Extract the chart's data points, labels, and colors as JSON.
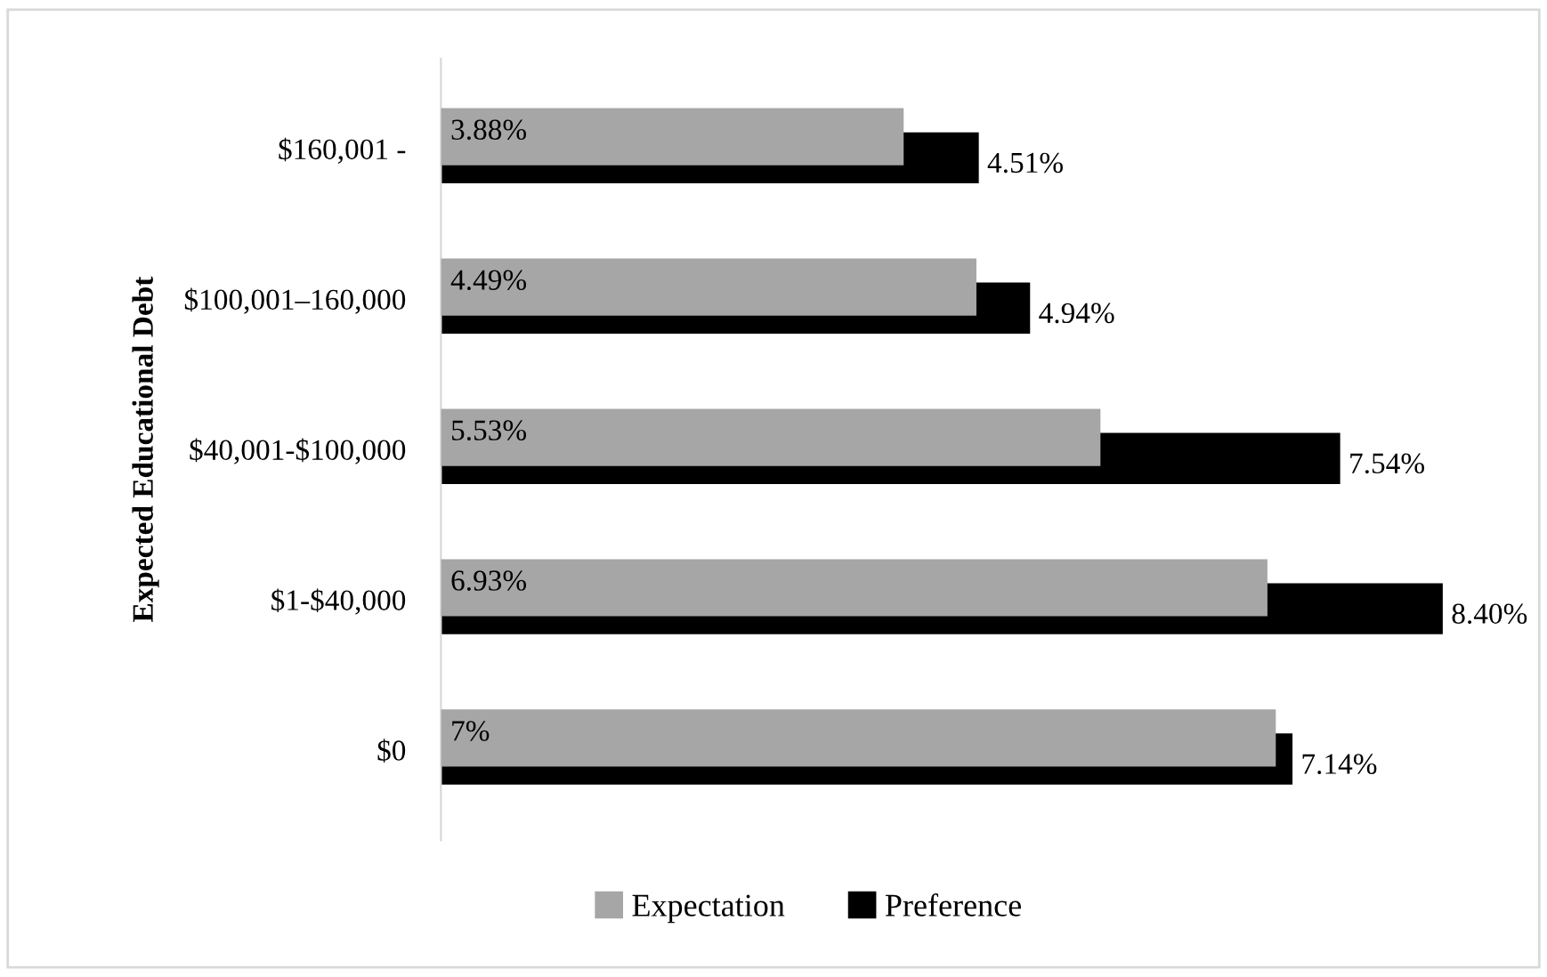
{
  "chart_data": {
    "type": "bar",
    "orientation": "horizontal",
    "ylabel": "Expected Educational Debt",
    "categories": [
      "$160,001 -",
      "$100,001–160,000",
      "$40,001-$100,000",
      "$1-$40,000",
      "$0"
    ],
    "series": [
      {
        "name": "Expectation",
        "color": "#a6a6a6",
        "values": [
          3.88,
          4.49,
          5.53,
          6.93,
          7
        ],
        "value_labels": [
          "3.88%",
          "4.49%",
          "5.53%",
          "6.93%",
          "7%"
        ]
      },
      {
        "name": "Preference",
        "color": "#000000",
        "values": [
          4.51,
          4.94,
          7.54,
          8.4,
          7.14
        ],
        "value_labels": [
          "4.51%",
          "4.94%",
          "7.54%",
          "8.40%",
          "7.14%"
        ]
      }
    ],
    "legend": "bottom",
    "grid": false
  }
}
